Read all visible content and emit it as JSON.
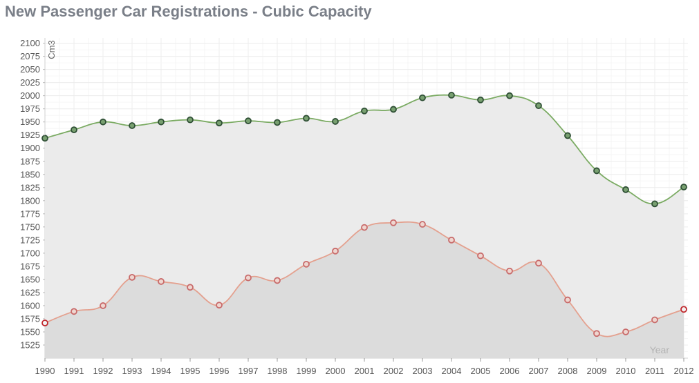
{
  "title": "New Passenger Car Registrations - Cubic Capacity",
  "chart_data": {
    "type": "area",
    "title": "New Passenger Car Registrations - Cubic Capacity",
    "xlabel": "Year",
    "ylabel": "Cm3",
    "x": [
      1990,
      1991,
      1992,
      1993,
      1994,
      1995,
      1996,
      1997,
      1998,
      1999,
      2000,
      2001,
      2002,
      2003,
      2004,
      2005,
      2006,
      2007,
      2008,
      2009,
      2010,
      2011,
      2012
    ],
    "ylim": [
      1500,
      2110
    ],
    "yticks": [
      1525,
      1550,
      1575,
      1600,
      1625,
      1650,
      1675,
      1700,
      1725,
      1750,
      1775,
      1800,
      1825,
      1850,
      1875,
      1900,
      1925,
      1950,
      1975,
      2000,
      2025,
      2050,
      2075,
      2100
    ],
    "grid": true,
    "series": [
      {
        "color": "#7bab63",
        "fill": "#ebebeb",
        "marker_fill": "#78a070",
        "marker_stroke": "#2f4f35",
        "values": [
          1919,
          1935,
          1950,
          1943,
          1950,
          1954,
          1948,
          1952,
          1949,
          1957,
          1951,
          1971,
          1974,
          1996,
          2001,
          1992,
          2000,
          1981,
          1924,
          1857,
          1821,
          1794,
          1826
        ]
      },
      {
        "color": "#e4a08e",
        "fill": "#dcdcdc",
        "marker_fill": "#efd6d0",
        "marker_stroke": "#c86a6a",
        "values": [
          1567,
          1589,
          1600,
          1654,
          1646,
          1635,
          1601,
          1653,
          1648,
          1679,
          1704,
          1749,
          1758,
          1755,
          1725,
          1695,
          1666,
          1681,
          1611,
          1547,
          1550,
          1573,
          1593
        ]
      }
    ]
  }
}
